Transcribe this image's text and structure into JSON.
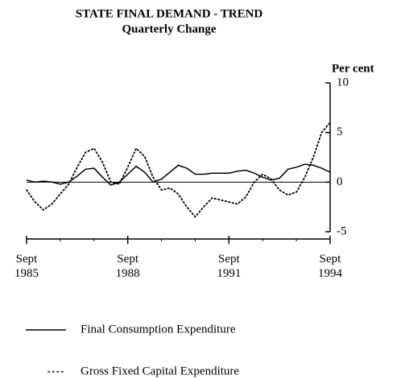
{
  "chart_data": {
    "type": "line",
    "title": "STATE FINAL DEMAND - TREND",
    "subtitle": "Quarterly Change",
    "y_label": "Per cent",
    "categories": [
      "Sept\n1985",
      null,
      null,
      null,
      null,
      null,
      null,
      null,
      null,
      null,
      null,
      null,
      "Sept\n1988",
      null,
      null,
      null,
      null,
      null,
      null,
      null,
      null,
      null,
      null,
      null,
      "Sept\n1991",
      null,
      null,
      null,
      null,
      null,
      null,
      null,
      null,
      null,
      null,
      null,
      "Sept\n1994"
    ],
    "series": [
      {
        "name": "Final Consumption Expenditure",
        "color": "#000000",
        "dash": "solid",
        "values": [
          0.2,
          0.0,
          0.1,
          0.0,
          -0.2,
          0.0,
          0.6,
          1.3,
          1.4,
          0.5,
          -0.3,
          0.0,
          0.8,
          1.6,
          1.0,
          0.0,
          0.3,
          1.0,
          1.7,
          1.4,
          0.8,
          0.8,
          0.9,
          0.9,
          0.9,
          1.1,
          1.2,
          0.9,
          0.5,
          0.2,
          0.4,
          1.3,
          1.5,
          1.8,
          1.7,
          1.4,
          1.0
        ]
      },
      {
        "name": "Gross Fixed Capital Expenditure",
        "color": "#000000",
        "dash": "dotted",
        "values": [
          -0.8,
          -2.0,
          -2.8,
          -2.2,
          -1.2,
          -0.2,
          1.5,
          3.0,
          3.4,
          2.0,
          0.0,
          -0.2,
          1.5,
          3.4,
          2.6,
          0.5,
          -0.8,
          -0.6,
          -1.2,
          -2.5,
          -3.5,
          -2.5,
          -1.6,
          -1.8,
          -2.0,
          -2.2,
          -1.5,
          0.0,
          0.8,
          0.3,
          -0.8,
          -1.3,
          -1.0,
          0.5,
          2.5,
          5.0,
          6.0
        ]
      }
    ],
    "ylim": [
      -5,
      10
    ],
    "yticks": [
      10,
      5,
      0,
      -5
    ],
    "y_axis_side": "right",
    "zero_line": true,
    "legend": "bottom"
  }
}
